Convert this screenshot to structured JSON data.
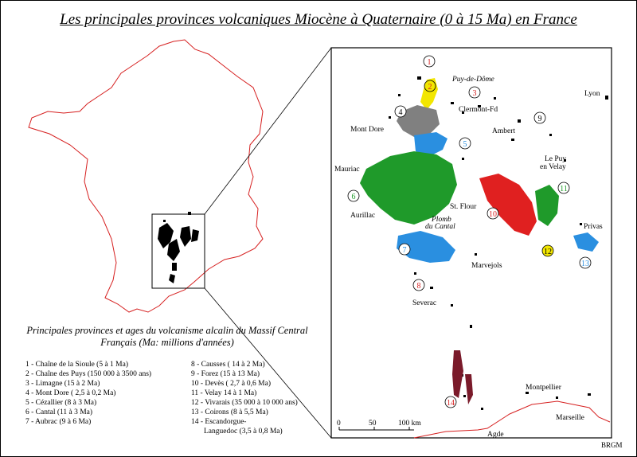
{
  "title": "Les principales provinces volcaniques Miocène à Quaternaire (0 à 15 Ma) en France",
  "legend": {
    "heading": "Principales provinces et ages du volcanisme alcalin du Massif Central Français (Ma: millions d'années)",
    "left": [
      "1 - Chaîne de la Sioule (5 à 1 Ma)",
      "2 - Chaîne des Puys (150 000 à 3500 ans)",
      "3 - Limagne (15 à 2 Ma)",
      "4 - Mont Dore ( 2,5 à 0,2 Ma)",
      "5 - Cézallier (8 à 3 Ma)",
      "6 - Cantal (11 à 3 Ma)",
      "7 - Aubrac (9 à 6 Ma)"
    ],
    "right": [
      "8 - Causses ( 14 à 2 Ma)",
      "9 - Forez (15 à 13 Ma)",
      "10 - Devès ( 2,7 à 0,6 Ma)",
      "11 - Velay 14 à 1 Ma)",
      "12 - Vivarais (35 000 à 10 000 ans)",
      "13 - Coirons (8 à 5,5 Ma)",
      "14 - Escandorgue-",
      "Languedoc (3,5 à 0,8 Ma)"
    ]
  },
  "places": [
    {
      "name": "Puy-de-Dôme",
      "italic": true
    },
    {
      "name": "Clermont-Fd",
      "italic": false
    },
    {
      "name": "Mont Dore",
      "italic": false
    },
    {
      "name": "Ambert",
      "italic": false
    },
    {
      "name": "Lyon",
      "italic": false
    },
    {
      "name": "Le Puy",
      "italic": false
    },
    {
      "name": "en Velay",
      "italic": false
    },
    {
      "name": "Mauriac",
      "italic": false
    },
    {
      "name": "St. Flour",
      "italic": false
    },
    {
      "name": "Plomb",
      "italic": true
    },
    {
      "name": "du Cantal",
      "italic": true
    },
    {
      "name": "Aurillac",
      "italic": false
    },
    {
      "name": "Privas",
      "italic": false
    },
    {
      "name": "Marvejols",
      "italic": false
    },
    {
      "name": "Severac",
      "italic": false
    },
    {
      "name": "Montpellier",
      "italic": false
    },
    {
      "name": "Marseille",
      "italic": false
    },
    {
      "name": "Agde",
      "italic": false
    }
  ],
  "provinces": [
    {
      "num": "1",
      "color": "#ffffff"
    },
    {
      "num": "2",
      "color": "#f2e600"
    },
    {
      "num": "3",
      "color": "#ffffff"
    },
    {
      "num": "4",
      "color": "#808080"
    },
    {
      "num": "5",
      "color": "#2a8fe0"
    },
    {
      "num": "6",
      "color": "#1f9a2a"
    },
    {
      "num": "7",
      "color": "#2a8fe0"
    },
    {
      "num": "8",
      "color": "#ffffff"
    },
    {
      "num": "9",
      "color": "#ffffff"
    },
    {
      "num": "10",
      "color": "#e02020"
    },
    {
      "num": "11",
      "color": "#1f9a2a"
    },
    {
      "num": "12",
      "color": "#f2e600"
    },
    {
      "num": "13",
      "color": "#2a8fe0"
    },
    {
      "num": "14",
      "color": "#ffffff"
    }
  ],
  "scale": {
    "labels": [
      "0",
      "50",
      "100 km"
    ]
  },
  "credit": "BRGM",
  "colors": {
    "border": "#d62020",
    "province_green": "#1f9a2a",
    "province_red": "#e02020",
    "province_blue": "#2a8fe0",
    "province_yellow": "#f2e600",
    "province_grey": "#808080"
  }
}
